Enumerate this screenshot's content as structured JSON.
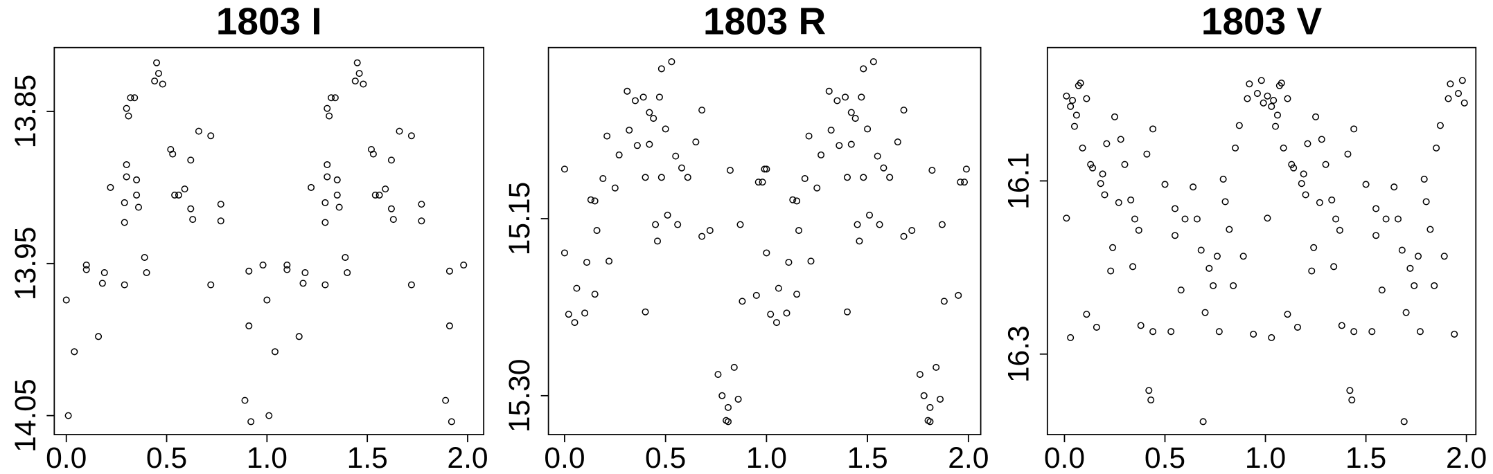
{
  "chart_data": [
    {
      "type": "scatter",
      "title": "1803 I",
      "color": "#000000",
      "y_reversed": true,
      "xlim": [
        -0.06,
        2.08
      ],
      "ylim": [
        13.808,
        14.0625
      ],
      "xticks": [
        {
          "value": 0,
          "label": "0.0"
        },
        0.5,
        {
          "value": 1,
          "label": "1.0"
        },
        1.5,
        {
          "value": 2,
          "label": "2.0"
        }
      ],
      "yticks": [
        13.85,
        13.95,
        14.05
      ],
      "x": [
        0,
        0.01,
        0.04,
        0.1,
        0.1,
        0.16,
        0.18,
        0.19,
        0.22,
        0.29,
        0.29,
        0.29,
        0.3,
        0.3,
        0.3,
        0.31,
        0.32,
        0.34,
        0.35,
        0.35,
        0.36,
        0.39,
        0.4,
        0.44,
        0.45,
        0.46,
        0.48,
        0.52,
        0.53,
        0.54,
        0.56,
        0.59,
        0.62,
        0.62,
        0.63,
        0.66,
        0.72,
        0.72,
        0.77,
        0.77,
        0.89,
        0.91,
        0.91,
        0.92,
        0.98,
        1,
        1.01,
        1.04,
        1.1,
        1.1,
        1.16,
        1.18,
        1.19,
        1.22,
        1.29,
        1.29,
        1.29,
        1.3,
        1.3,
        1.3,
        1.31,
        1.32,
        1.34,
        1.35,
        1.35,
        1.36,
        1.39,
        1.4,
        1.44,
        1.45,
        1.46,
        1.48,
        1.52,
        1.53,
        1.54,
        1.56,
        1.59,
        1.62,
        1.62,
        1.63,
        1.66,
        1.72,
        1.72,
        1.77,
        1.77,
        1.89,
        1.91,
        1.91,
        1.92,
        1.98
      ],
      "values": [
        13.974,
        14.05,
        14.008,
        13.951,
        13.954,
        13.998,
        13.963,
        13.956,
        13.9,
        13.964,
        13.923,
        13.91,
        13.893,
        13.885,
        13.848,
        13.853,
        13.841,
        13.841,
        13.895,
        13.905,
        13.913,
        13.946,
        13.956,
        13.83,
        13.818,
        13.825,
        13.832,
        13.875,
        13.878,
        13.905,
        13.905,
        13.901,
        13.914,
        13.882,
        13.921,
        13.863,
        13.866,
        13.964,
        13.911,
        13.922,
        14.04,
        13.955,
        13.991,
        14.054,
        13.951,
        13.974,
        14.05,
        14.008,
        13.951,
        13.954,
        13.998,
        13.963,
        13.956,
        13.9,
        13.964,
        13.923,
        13.91,
        13.893,
        13.885,
        13.848,
        13.853,
        13.841,
        13.841,
        13.895,
        13.905,
        13.913,
        13.946,
        13.956,
        13.83,
        13.818,
        13.825,
        13.832,
        13.875,
        13.878,
        13.905,
        13.905,
        13.901,
        13.914,
        13.882,
        13.921,
        13.863,
        13.866,
        13.964,
        13.911,
        13.922,
        14.04,
        13.955,
        13.991,
        14.054,
        13.951
      ]
    },
    {
      "type": "scatter",
      "title": "1803 R",
      "color": "#000000",
      "y_reversed": true,
      "xlim": [
        -0.08,
        2.061
      ],
      "ylim": [
        15.005,
        15.333
      ],
      "xticks": [
        {
          "value": 0,
          "label": "0.0"
        },
        0.5,
        {
          "value": 1,
          "label": "1.0"
        },
        1.5,
        {
          "value": 2,
          "label": "2.0"
        }
      ],
      "yticks": [
        15.15,
        {
          "value": 15.3,
          "label": "15.30"
        }
      ],
      "x": [
        0,
        0,
        0.02,
        0.05,
        0.06,
        0.1,
        0.11,
        0.13,
        0.15,
        0.15,
        0.16,
        0.19,
        0.21,
        0.22,
        0.25,
        0.27,
        0.31,
        0.32,
        0.35,
        0.36,
        0.39,
        0.4,
        0.4,
        0.42,
        0.42,
        0.44,
        0.45,
        0.46,
        0.47,
        0.48,
        0.48,
        0.5,
        0.51,
        0.53,
        0.55,
        0.56,
        0.58,
        0.61,
        0.65,
        0.68,
        0.68,
        0.72,
        0.76,
        0.78,
        0.8,
        0.81,
        0.82,
        0.81,
        0.84,
        0.86,
        0.87,
        0.88,
        0.95,
        0.96,
        0.98,
        0.99,
        1,
        1,
        1.02,
        1.05,
        1.06,
        1.1,
        1.11,
        1.13,
        1.15,
        1.15,
        1.16,
        1.19,
        1.21,
        1.22,
        1.25,
        1.27,
        1.31,
        1.32,
        1.35,
        1.36,
        1.39,
        1.4,
        1.4,
        1.42,
        1.42,
        1.44,
        1.45,
        1.46,
        1.47,
        1.48,
        1.48,
        1.5,
        1.51,
        1.53,
        1.55,
        1.56,
        1.58,
        1.61,
        1.65,
        1.68,
        1.68,
        1.72,
        1.76,
        1.78,
        1.8,
        1.81,
        1.82,
        1.81,
        1.84,
        1.86,
        1.87,
        1.88,
        1.95,
        1.96,
        1.98,
        1.99
      ],
      "values": [
        15.108,
        15.179,
        15.231,
        15.238,
        15.209,
        15.23,
        15.187,
        15.134,
        15.135,
        15.214,
        15.16,
        15.116,
        15.08,
        15.186,
        15.124,
        15.096,
        15.042,
        15.075,
        15.05,
        15.088,
        15.047,
        15.115,
        15.229,
        15.06,
        15.087,
        15.065,
        15.155,
        15.169,
        15.047,
        15.115,
        15.023,
        15.074,
        15.147,
        15.017,
        15.097,
        15.155,
        15.107,
        15.115,
        15.085,
        15.058,
        15.165,
        15.16,
        15.282,
        15.3,
        15.321,
        15.322,
        15.109,
        15.31,
        15.276,
        15.303,
        15.155,
        15.22,
        15.215,
        15.119,
        15.119,
        15.108,
        15.108,
        15.179,
        15.231,
        15.238,
        15.209,
        15.23,
        15.187,
        15.134,
        15.135,
        15.214,
        15.16,
        15.116,
        15.08,
        15.186,
        15.124,
        15.096,
        15.042,
        15.075,
        15.05,
        15.088,
        15.047,
        15.115,
        15.229,
        15.06,
        15.087,
        15.065,
        15.155,
        15.169,
        15.047,
        15.115,
        15.023,
        15.074,
        15.147,
        15.017,
        15.097,
        15.155,
        15.107,
        15.115,
        15.085,
        15.058,
        15.165,
        15.16,
        15.282,
        15.3,
        15.321,
        15.322,
        15.109,
        15.31,
        15.276,
        15.303,
        15.155,
        15.22,
        15.215,
        15.119,
        15.119,
        15.108
      ]
    },
    {
      "type": "scatter",
      "title": "1803 V",
      "color": "#000000",
      "y_reversed": true,
      "xlim": [
        -0.085,
        2.047
      ],
      "ylim": [
        15.946,
        16.393
      ],
      "xticks": [
        {
          "value": 0,
          "label": "0.0"
        },
        0.5,
        {
          "value": 1,
          "label": "1.0"
        },
        1.5,
        {
          "value": 2,
          "label": "2.0"
        }
      ],
      "yticks": [
        16.1,
        16.3
      ],
      "x": [
        0.01,
        0.01,
        0.03,
        0.03,
        0.04,
        0.05,
        0.06,
        0.07,
        0.08,
        0.09,
        0.11,
        0.11,
        0.13,
        0.14,
        0.16,
        0.18,
        0.19,
        0.2,
        0.21,
        0.23,
        0.24,
        0.25,
        0.27,
        0.28,
        0.3,
        0.33,
        0.34,
        0.35,
        0.37,
        0.38,
        0.41,
        0.42,
        0.43,
        0.44,
        0.44,
        0.5,
        0.53,
        0.55,
        0.55,
        0.58,
        0.6,
        0.64,
        0.66,
        0.68,
        0.69,
        0.7,
        0.72,
        0.74,
        0.76,
        0.77,
        0.79,
        0.8,
        0.82,
        0.84,
        0.85,
        0.87,
        0.89,
        0.91,
        0.92,
        0.94,
        0.96,
        0.98,
        0.99,
        1.01,
        1.01,
        1.03,
        1.03,
        1.04,
        1.05,
        1.06,
        1.07,
        1.08,
        1.09,
        1.11,
        1.11,
        1.13,
        1.14,
        1.16,
        1.18,
        1.19,
        1.2,
        1.21,
        1.23,
        1.24,
        1.25,
        1.27,
        1.28,
        1.3,
        1.33,
        1.34,
        1.35,
        1.37,
        1.38,
        1.41,
        1.42,
        1.43,
        1.44,
        1.44,
        1.5,
        1.53,
        1.55,
        1.55,
        1.58,
        1.6,
        1.64,
        1.66,
        1.68,
        1.69,
        1.7,
        1.72,
        1.74,
        1.76,
        1.77,
        1.79,
        1.8,
        1.82,
        1.84,
        1.85,
        1.87,
        1.89,
        1.91,
        1.92,
        1.94,
        1.96,
        1.98,
        1.99
      ],
      "values": [
        16.143,
        16.002,
        16.014,
        16.281,
        16.007,
        16.037,
        16.024,
        15.99,
        15.987,
        16.062,
        16.254,
        16.005,
        16.081,
        16.085,
        16.269,
        16.103,
        16.092,
        16.116,
        16.057,
        16.204,
        16.177,
        16.026,
        16.125,
        16.052,
        16.081,
        16.122,
        16.199,
        16.144,
        16.157,
        16.267,
        16.069,
        16.342,
        16.353,
        16.04,
        16.274,
        16.104,
        16.274,
        16.132,
        16.163,
        16.226,
        16.144,
        16.107,
        16.144,
        16.18,
        16.378,
        16.252,
        16.201,
        16.221,
        16.187,
        16.274,
        16.098,
        16.124,
        16.156,
        16.221,
        16.062,
        16.036,
        16.187,
        16.005,
        15.988,
        16.277,
        15.999,
        15.984,
        16.01,
        16.143,
        16.002,
        16.014,
        16.281,
        16.007,
        16.037,
        16.024,
        15.99,
        15.987,
        16.062,
        16.254,
        16.005,
        16.081,
        16.085,
        16.269,
        16.103,
        16.092,
        16.116,
        16.057,
        16.204,
        16.177,
        16.026,
        16.125,
        16.052,
        16.081,
        16.122,
        16.199,
        16.144,
        16.157,
        16.267,
        16.069,
        16.342,
        16.353,
        16.04,
        16.274,
        16.104,
        16.274,
        16.132,
        16.163,
        16.226,
        16.144,
        16.107,
        16.144,
        16.18,
        16.378,
        16.252,
        16.201,
        16.221,
        16.187,
        16.274,
        16.098,
        16.124,
        16.156,
        16.221,
        16.062,
        16.036,
        16.187,
        16.005,
        15.988,
        16.277,
        15.999,
        15.984,
        16.01
      ]
    }
  ]
}
